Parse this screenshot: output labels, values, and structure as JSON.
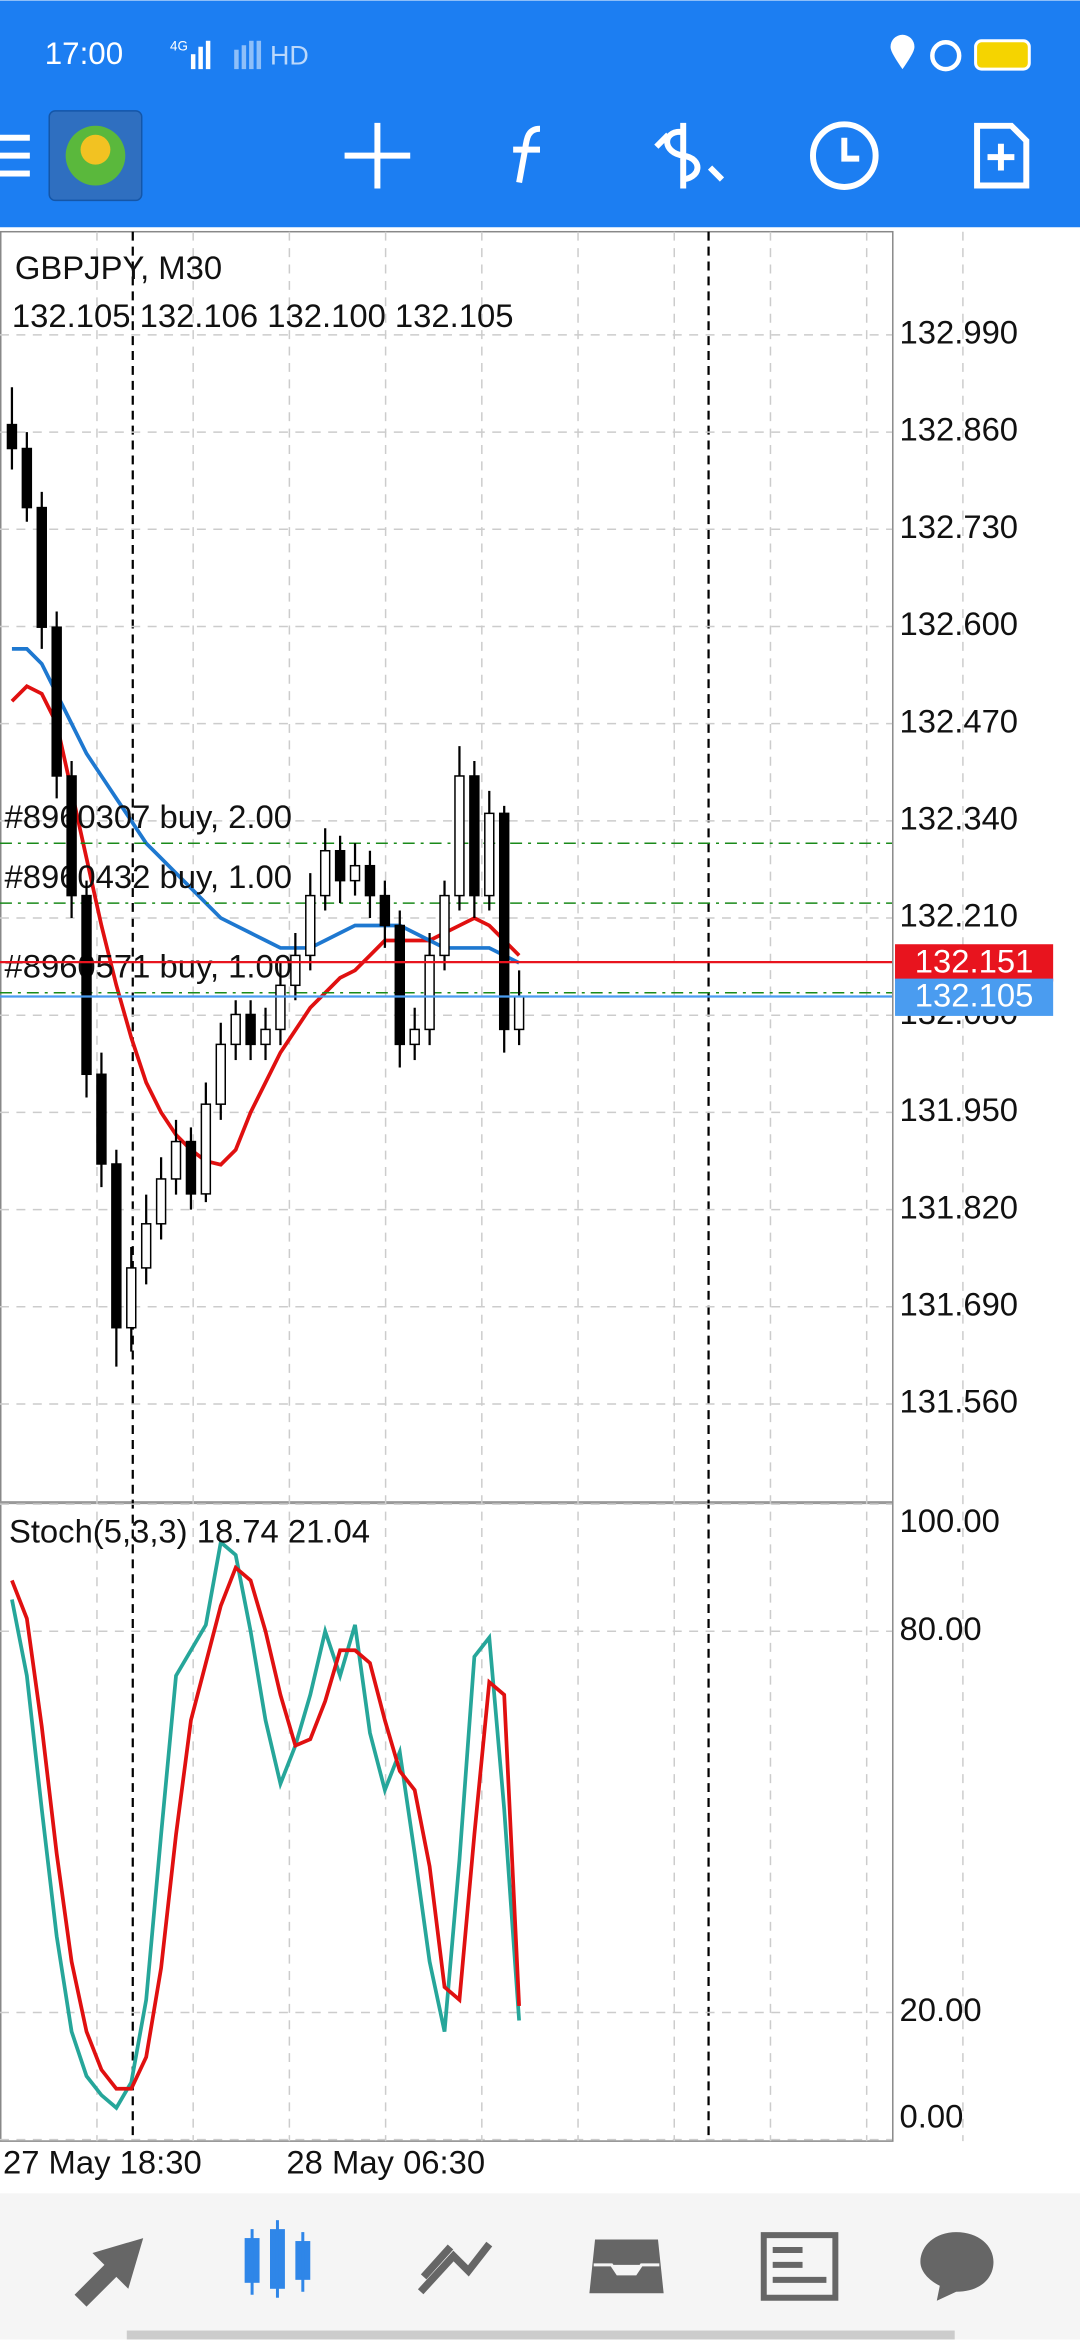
{
  "status_bar": {
    "time": "17:00",
    "network": "4G",
    "hd": "HD"
  },
  "chart_data": [
    {
      "type": "candlestick",
      "title": "GBPJPY, M30",
      "subtitle": "132.105 132.106 132.100 132.105",
      "categories": [
        "27 May 18:30",
        null,
        null,
        null,
        null,
        null,
        null,
        null,
        null,
        null,
        null,
        null,
        null,
        null,
        null,
        null,
        null,
        null,
        null,
        "28 May 06:30",
        null,
        null,
        null,
        null,
        null,
        null,
        null,
        null,
        null,
        null,
        null,
        null,
        null,
        null,
        null
      ],
      "open": [
        132.87,
        132.838,
        132.759,
        132.599,
        132.4,
        132.24,
        132.001,
        131.881,
        131.662,
        131.742,
        131.801,
        131.861,
        131.911,
        131.841,
        131.961,
        132.041,
        132.081,
        132.041,
        132.061,
        132.12,
        132.16,
        132.24,
        132.3,
        132.26,
        132.28,
        132.24,
        132.2,
        132.041,
        132.061,
        132.16,
        132.24,
        132.4,
        132.24,
        132.35,
        132.061
      ],
      "high": [
        132.92,
        132.86,
        132.78,
        132.62,
        132.42,
        132.26,
        132.03,
        131.9,
        131.77,
        131.84,
        131.89,
        131.94,
        131.93,
        131.99,
        132.07,
        132.1,
        132.1,
        132.09,
        132.15,
        132.19,
        132.27,
        132.33,
        132.32,
        132.31,
        132.3,
        132.26,
        132.22,
        132.09,
        132.19,
        132.26,
        132.44,
        132.42,
        132.38,
        132.36,
        132.14
      ],
      "low": [
        132.81,
        132.74,
        132.57,
        132.37,
        132.21,
        131.97,
        131.85,
        131.61,
        131.63,
        131.72,
        131.78,
        131.84,
        131.82,
        131.83,
        131.94,
        132.02,
        132.02,
        132.02,
        132.04,
        132.1,
        132.14,
        132.22,
        132.23,
        132.24,
        132.21,
        132.17,
        132.01,
        132.02,
        132.04,
        132.14,
        132.22,
        132.21,
        132.22,
        132.03,
        132.04
      ],
      "close": [
        132.838,
        132.759,
        132.599,
        132.4,
        132.24,
        132.001,
        131.881,
        131.662,
        131.742,
        131.801,
        131.861,
        131.911,
        131.841,
        131.961,
        132.041,
        132.081,
        132.041,
        132.061,
        132.12,
        132.16,
        132.24,
        132.3,
        132.26,
        132.28,
        132.24,
        132.2,
        132.041,
        132.061,
        132.16,
        132.24,
        132.4,
        132.24,
        132.35,
        132.061,
        132.105
      ],
      "series": [
        {
          "color": "#e01010",
          "values": [
            132.5,
            132.52,
            132.51,
            132.47,
            132.38,
            132.29,
            132.2,
            132.12,
            132.05,
            131.99,
            131.95,
            131.92,
            131.9,
            131.885,
            131.88,
            131.9,
            131.95,
            131.99,
            132.03,
            132.06,
            132.09,
            132.11,
            132.13,
            132.14,
            132.16,
            132.18,
            132.18,
            132.18,
            132.18,
            132.19,
            132.2,
            132.21,
            132.2,
            132.18,
            132.16
          ]
        },
        {
          "color": "#1e78d0",
          "values": [
            132.57,
            132.57,
            132.55,
            132.51,
            132.47,
            132.43,
            132.4,
            132.37,
            132.34,
            132.31,
            132.29,
            132.27,
            132.25,
            132.23,
            132.21,
            132.2,
            132.19,
            132.18,
            132.17,
            132.17,
            132.17,
            132.18,
            132.19,
            132.2,
            132.2,
            132.2,
            132.2,
            132.19,
            132.18,
            132.17,
            132.17,
            132.17,
            132.17,
            132.16,
            132.15
          ]
        }
      ],
      "orders": [
        {
          "label": "#8960307 buy, 2.00",
          "price": 132.31
        },
        {
          "label": "#8960432 buy, 1.00",
          "price": 132.23
        },
        {
          "label": "#8960571 buy, 1.00",
          "price": 132.11
        }
      ],
      "bid": 132.151,
      "bid_color": "#e8141e",
      "last": 132.105,
      "last_color": "#4a9cf0",
      "ylim": [
        131.432,
        133.128
      ],
      "yticks": [
        {
          "value": 132.99,
          "label": "132.990"
        },
        {
          "value": 132.86,
          "label": "132.860"
        },
        {
          "value": 132.73,
          "label": "132.730"
        },
        {
          "value": 132.6,
          "label": "132.600"
        },
        {
          "value": 132.47,
          "label": "132.470"
        },
        {
          "value": 132.34,
          "label": "132.340"
        },
        {
          "value": 132.21,
          "label": "132.210"
        },
        {
          "value": 132.08,
          "label": "132.080"
        },
        {
          "value": 131.95,
          "label": "131.950"
        },
        {
          "value": 131.82,
          "label": "131.820"
        },
        {
          "value": 131.69,
          "label": "131.690"
        },
        {
          "value": 131.56,
          "label": "131.560"
        }
      ],
      "grid": true
    },
    {
      "type": "line",
      "title": "Stoch(5,3,3) 18.74 21.04",
      "series": [
        {
          "color": "#26a69a",
          "values": [
            85,
            73,
            52,
            32,
            17,
            10,
            7,
            5,
            9,
            22,
            48,
            73,
            77,
            81,
            94,
            92,
            80,
            66,
            56,
            62,
            70,
            80,
            73,
            81,
            64,
            55,
            61,
            45,
            28,
            17,
            44,
            76,
            79,
            52,
            18.74
          ]
        },
        {
          "color": "#e01010",
          "values": [
            88,
            82,
            65,
            45,
            28,
            17,
            11,
            8,
            8,
            13,
            27,
            48,
            66,
            75,
            84,
            90,
            88,
            80,
            70,
            62,
            63,
            69,
            77,
            77,
            75,
            66,
            58,
            55,
            43,
            24,
            22,
            48,
            72,
            70,
            21.04
          ]
        }
      ],
      "ylim": [
        0,
        100
      ],
      "yticks": [
        {
          "value": 100,
          "label": "100.00"
        },
        {
          "value": 80,
          "label": "80.00"
        },
        {
          "value": 20,
          "label": "20.00"
        },
        {
          "value": 0,
          "label": "0.00"
        }
      ],
      "grid": true
    }
  ]
}
